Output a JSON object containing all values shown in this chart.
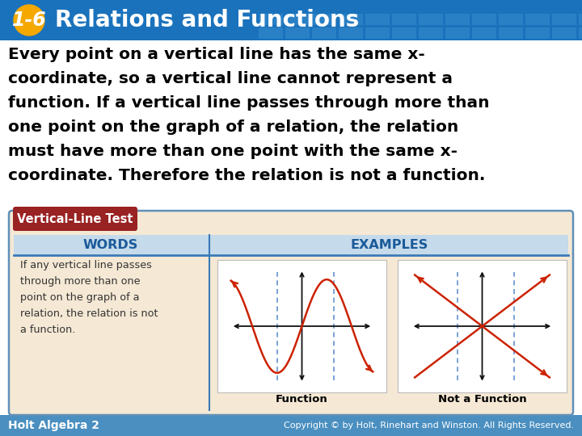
{
  "title_text": "Relations and Functions",
  "title_num": "1-6",
  "header_bg": "#1a72bc",
  "header_grid_color": "#3a8fce",
  "badge_color": "#f5a800",
  "badge_text_color": "#ffffff",
  "body_bg": "#ffffff",
  "body_text_color": "#000000",
  "footer_bg": "#4a8fc0",
  "footer_text": "Holt Algebra 2",
  "footer_right": "Copyright © by Holt, Rinehart and Winston. All Rights Reserved.",
  "box_bg": "#f5e8d4",
  "box_border": "#6090b8",
  "box_title": "Vertical-Line Test",
  "box_title_bg": "#992222",
  "box_title_text_color": "#ffffff",
  "col_header_bg": "#c5daea",
  "col_header_text": "#1a5a9a",
  "col_header_border": "#3a7ab8",
  "words_header": "WORDS",
  "examples_header": "EXAMPLES",
  "words_text": "If any vertical line passes\nthrough more than one\npoint on the graph of a\nrelation, the relation is not\na function.",
  "words_text_color": "#333333",
  "function_label": "Function",
  "not_function_label": "Not a Function",
  "dashed_line_color": "#5588cc",
  "curve_color": "#cc2200",
  "axis_color": "#111111",
  "title_fontsize": 20,
  "badge_fontsize": 17,
  "main_fontsize": 14.5,
  "footer_fontsize": 10
}
